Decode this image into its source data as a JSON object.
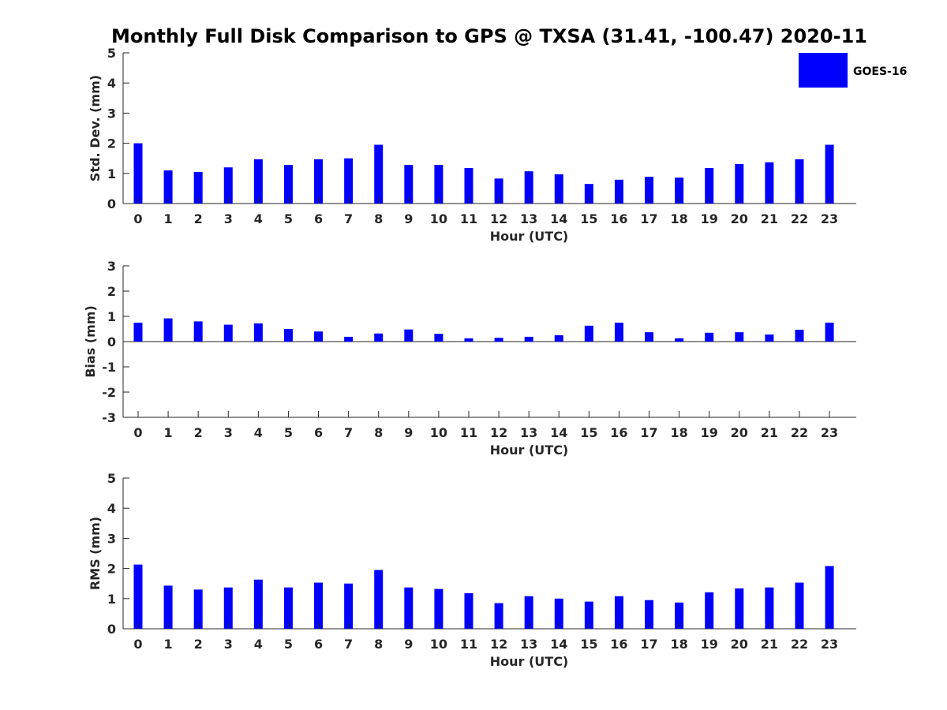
{
  "figure": {
    "title": "Monthly Full Disk Comparison to GPS @ TXSA (31.41, -100.47) 2020-11"
  },
  "legend": {
    "label": "GOES-16",
    "color": "#0000ff"
  },
  "chart_data": [
    {
      "type": "bar",
      "name": "std-dev",
      "categories": [
        "0",
        "1",
        "2",
        "3",
        "4",
        "5",
        "6",
        "7",
        "8",
        "9",
        "10",
        "11",
        "12",
        "13",
        "14",
        "15",
        "16",
        "17",
        "18",
        "19",
        "20",
        "21",
        "22",
        "23"
      ],
      "series": [
        {
          "name": "GOES-16",
          "color": "#0000ff",
          "values": [
            2.0,
            1.1,
            1.05,
            1.2,
            1.47,
            1.28,
            1.47,
            1.5,
            1.95,
            1.28,
            1.28,
            1.18,
            0.83,
            1.07,
            0.97,
            0.65,
            0.79,
            0.89,
            0.86,
            1.18,
            1.31,
            1.37,
            1.47,
            1.95
          ]
        }
      ],
      "xlabel": "Hour (UTC)",
      "ylabel": "Std. Dev. (mm)",
      "ylim": [
        0,
        5
      ],
      "yticks": [
        "0",
        "1",
        "2",
        "3",
        "4",
        "5"
      ]
    },
    {
      "type": "bar",
      "name": "bias",
      "categories": [
        "0",
        "1",
        "2",
        "3",
        "4",
        "5",
        "6",
        "7",
        "8",
        "9",
        "10",
        "11",
        "12",
        "13",
        "14",
        "15",
        "16",
        "17",
        "18",
        "19",
        "20",
        "21",
        "22",
        "23"
      ],
      "series": [
        {
          "name": "GOES-16",
          "color": "#0000ff",
          "values": [
            0.75,
            0.92,
            0.8,
            0.67,
            0.72,
            0.5,
            0.4,
            0.19,
            0.32,
            0.48,
            0.31,
            0.13,
            0.15,
            0.19,
            0.25,
            0.63,
            0.75,
            0.37,
            0.13,
            0.35,
            0.37,
            0.28,
            0.47,
            0.75
          ]
        }
      ],
      "xlabel": "Hour (UTC)",
      "ylabel": "Bias (mm)",
      "ylim": [
        -3,
        3
      ],
      "yticks": [
        "-3",
        "-2",
        "-1",
        "0",
        "1",
        "2",
        "3"
      ]
    },
    {
      "type": "bar",
      "name": "rms",
      "categories": [
        "0",
        "1",
        "2",
        "3",
        "4",
        "5",
        "6",
        "7",
        "8",
        "9",
        "10",
        "11",
        "12",
        "13",
        "14",
        "15",
        "16",
        "17",
        "18",
        "19",
        "20",
        "21",
        "22",
        "23"
      ],
      "series": [
        {
          "name": "GOES-16",
          "color": "#0000ff",
          "values": [
            2.13,
            1.43,
            1.3,
            1.37,
            1.63,
            1.37,
            1.53,
            1.5,
            1.95,
            1.37,
            1.32,
            1.18,
            0.85,
            1.08,
            1.0,
            0.9,
            1.08,
            0.95,
            0.87,
            1.21,
            1.34,
            1.37,
            1.53,
            2.08
          ]
        }
      ],
      "xlabel": "Hour (UTC)",
      "ylabel": "RMS (mm)",
      "ylim": [
        0,
        5
      ],
      "yticks": [
        "0",
        "1",
        "2",
        "3",
        "4",
        "5"
      ]
    }
  ]
}
